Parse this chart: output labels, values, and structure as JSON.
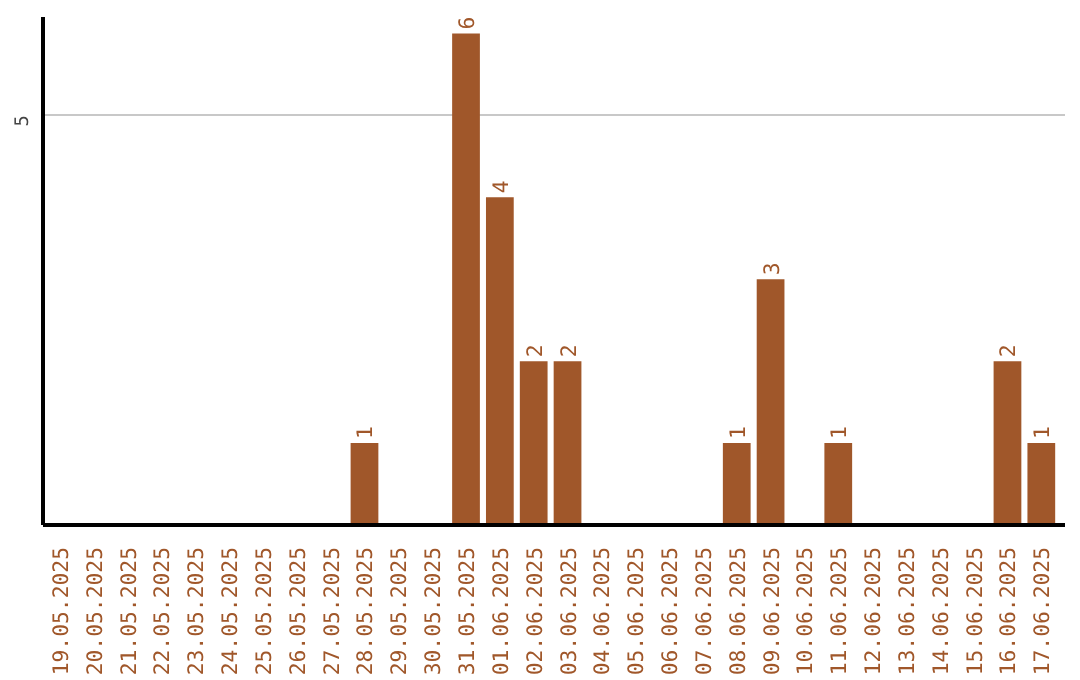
{
  "chart_data": {
    "type": "bar",
    "categories": [
      "19.05.2025",
      "20.05.2025",
      "21.05.2025",
      "22.05.2025",
      "23.05.2025",
      "24.05.2025",
      "25.05.2025",
      "26.05.2025",
      "27.05.2025",
      "28.05.2025",
      "29.05.2025",
      "30.05.2025",
      "31.05.2025",
      "01.06.2025",
      "02.06.2025",
      "03.06.2025",
      "04.06.2025",
      "05.06.2025",
      "06.06.2025",
      "07.06.2025",
      "08.06.2025",
      "09.06.2025",
      "10.06.2025",
      "11.06.2025",
      "12.06.2025",
      "13.06.2025",
      "14.06.2025",
      "15.06.2025",
      "16.06.2025",
      "17.06.2025"
    ],
    "values": [
      0,
      0,
      0,
      0,
      0,
      0,
      0,
      0,
      0,
      1,
      0,
      0,
      6,
      4,
      2,
      2,
      0,
      0,
      0,
      0,
      1,
      3,
      0,
      1,
      0,
      0,
      0,
      0,
      2,
      1
    ],
    "value_labels": [
      null,
      null,
      null,
      null,
      null,
      null,
      null,
      null,
      null,
      "1",
      null,
      null,
      "6",
      "4",
      "2",
      "2",
      null,
      null,
      null,
      null,
      "1",
      "3",
      null,
      "1",
      null,
      null,
      null,
      null,
      "2",
      "1"
    ],
    "color": "#a0572a",
    "ylim": [
      0,
      6.2
    ],
    "yticks": [
      5
    ],
    "grid": "y"
  }
}
